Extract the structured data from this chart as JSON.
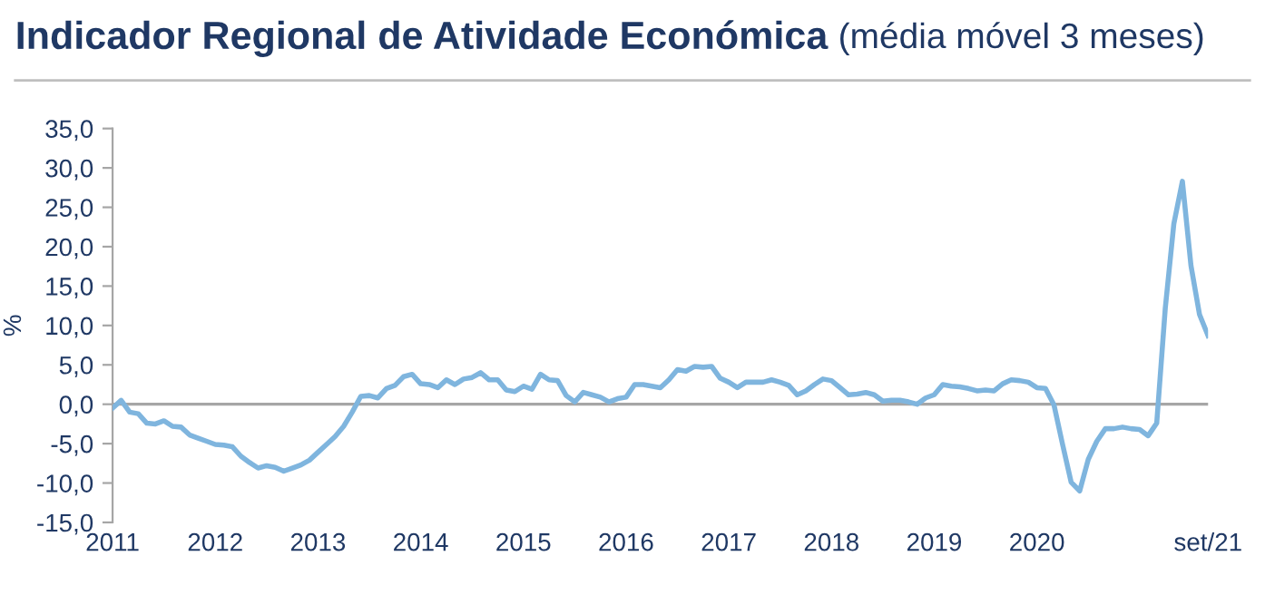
{
  "chart_data": {
    "type": "line",
    "title": "Indicador Regional de Atividade Económica",
    "subtitle": "(média móvel 3 meses)",
    "ylabel": "%",
    "x": [
      "2011-01",
      "2011-02",
      "2011-03",
      "2011-04",
      "2011-05",
      "2011-06",
      "2011-07",
      "2011-08",
      "2011-09",
      "2011-10",
      "2011-11",
      "2011-12",
      "2012-01",
      "2012-02",
      "2012-03",
      "2012-04",
      "2012-05",
      "2012-06",
      "2012-07",
      "2012-08",
      "2012-09",
      "2012-10",
      "2012-11",
      "2012-12",
      "2013-01",
      "2013-02",
      "2013-03",
      "2013-04",
      "2013-05",
      "2013-06",
      "2013-07",
      "2013-08",
      "2013-09",
      "2013-10",
      "2013-11",
      "2013-12",
      "2014-01",
      "2014-02",
      "2014-03",
      "2014-04",
      "2014-05",
      "2014-06",
      "2014-07",
      "2014-08",
      "2014-09",
      "2014-10",
      "2014-11",
      "2014-12",
      "2015-01",
      "2015-02",
      "2015-03",
      "2015-04",
      "2015-05",
      "2015-06",
      "2015-07",
      "2015-08",
      "2015-09",
      "2015-10",
      "2015-11",
      "2015-12",
      "2016-01",
      "2016-02",
      "2016-03",
      "2016-04",
      "2016-05",
      "2016-06",
      "2016-07",
      "2016-08",
      "2016-09",
      "2016-10",
      "2016-11",
      "2016-12",
      "2017-01",
      "2017-02",
      "2017-03",
      "2017-04",
      "2017-05",
      "2017-06",
      "2017-07",
      "2017-08",
      "2017-09",
      "2017-10",
      "2017-11",
      "2017-12",
      "2018-01",
      "2018-02",
      "2018-03",
      "2018-04",
      "2018-05",
      "2018-06",
      "2018-07",
      "2018-08",
      "2018-09",
      "2018-10",
      "2018-11",
      "2018-12",
      "2019-01",
      "2019-02",
      "2019-03",
      "2019-04",
      "2019-05",
      "2019-06",
      "2019-07",
      "2019-08",
      "2019-09",
      "2019-10",
      "2019-11",
      "2019-12",
      "2020-01",
      "2020-02",
      "2020-03",
      "2020-04",
      "2020-05",
      "2020-06",
      "2020-07",
      "2020-08",
      "2020-09",
      "2020-10",
      "2020-11",
      "2020-12",
      "2021-01",
      "2021-02",
      "2021-03",
      "2021-04",
      "2021-05",
      "2021-06",
      "2021-07",
      "2021-08",
      "2021-09"
    ],
    "series": [
      {
        "color": "#7fb5de",
        "values": [
          -0.5,
          0.5,
          -1.0,
          -1.2,
          -2.4,
          -2.5,
          -2.1,
          -2.8,
          -2.9,
          -3.9,
          -4.3,
          -4.7,
          -5.1,
          -5.2,
          -5.4,
          -6.6,
          -7.4,
          -8.1,
          -7.8,
          -8.0,
          -8.5,
          -8.1,
          -7.7,
          -7.1,
          -6.1,
          -5.1,
          -4.1,
          -2.8,
          -1.0,
          1.0,
          1.1,
          0.8,
          2.0,
          2.4,
          3.5,
          3.8,
          2.6,
          2.5,
          2.1,
          3.1,
          2.5,
          3.2,
          3.4,
          4.0,
          3.1,
          3.1,
          1.8,
          1.6,
          2.3,
          1.9,
          3.8,
          3.1,
          3.0,
          1.1,
          0.3,
          1.5,
          1.2,
          0.9,
          0.3,
          0.7,
          0.9,
          2.5,
          2.5,
          2.3,
          2.1,
          3.1,
          4.4,
          4.2,
          4.8,
          4.7,
          4.8,
          3.3,
          2.8,
          2.1,
          2.8,
          2.8,
          2.8,
          3.1,
          2.8,
          2.4,
          1.2,
          1.7,
          2.5,
          3.2,
          3.0,
          2.1,
          1.2,
          1.3,
          1.5,
          1.2,
          0.4,
          0.5,
          0.5,
          0.3,
          0.0,
          0.8,
          1.2,
          2.5,
          2.3,
          2.2,
          2.0,
          1.7,
          1.8,
          1.7,
          2.6,
          3.1,
          3.0,
          2.8,
          2.1,
          2.0,
          -0.1,
          -5.1,
          -9.9,
          -11.0,
          -7.0,
          -4.7,
          -3.1,
          -3.1,
          -2.9,
          -3.1,
          -3.2,
          -4.0,
          -2.4,
          12.2,
          22.9,
          28.3,
          17.6,
          11.4,
          8.7
        ]
      }
    ],
    "xlim": [
      "2011-01",
      "2021-09"
    ],
    "xticks": [
      {
        "value": "2011-01",
        "label": "2011"
      },
      {
        "value": "2012-01",
        "label": "2012"
      },
      {
        "value": "2013-01",
        "label": "2013"
      },
      {
        "value": "2014-01",
        "label": "2014"
      },
      {
        "value": "2015-01",
        "label": "2015"
      },
      {
        "value": "2016-01",
        "label": "2016"
      },
      {
        "value": "2017-01",
        "label": "2017"
      },
      {
        "value": "2018-01",
        "label": "2018"
      },
      {
        "value": "2019-01",
        "label": "2019"
      },
      {
        "value": "2020-01",
        "label": "2020"
      },
      {
        "value": "2021-09",
        "label": "set/21"
      }
    ],
    "ylim": [
      -15,
      35
    ],
    "yticks": [
      {
        "value": -15,
        "label": "-15,0"
      },
      {
        "value": -10,
        "label": "-10,0"
      },
      {
        "value": -5,
        "label": "-5,0"
      },
      {
        "value": 0,
        "label": "0,0"
      },
      {
        "value": 5,
        "label": "5,0"
      },
      {
        "value": 10,
        "label": "10,0"
      },
      {
        "value": 15,
        "label": "15,0"
      },
      {
        "value": 20,
        "label": "20,0"
      },
      {
        "value": 25,
        "label": "25,0"
      },
      {
        "value": 30,
        "label": "30,0"
      },
      {
        "value": 35,
        "label": "35,0"
      }
    ],
    "ref_lines": [
      {
        "axis": "y",
        "value": 0,
        "color": "#a6a6a6"
      }
    ],
    "grid": false,
    "legend": false,
    "marker": "none",
    "line_style": "solid"
  }
}
